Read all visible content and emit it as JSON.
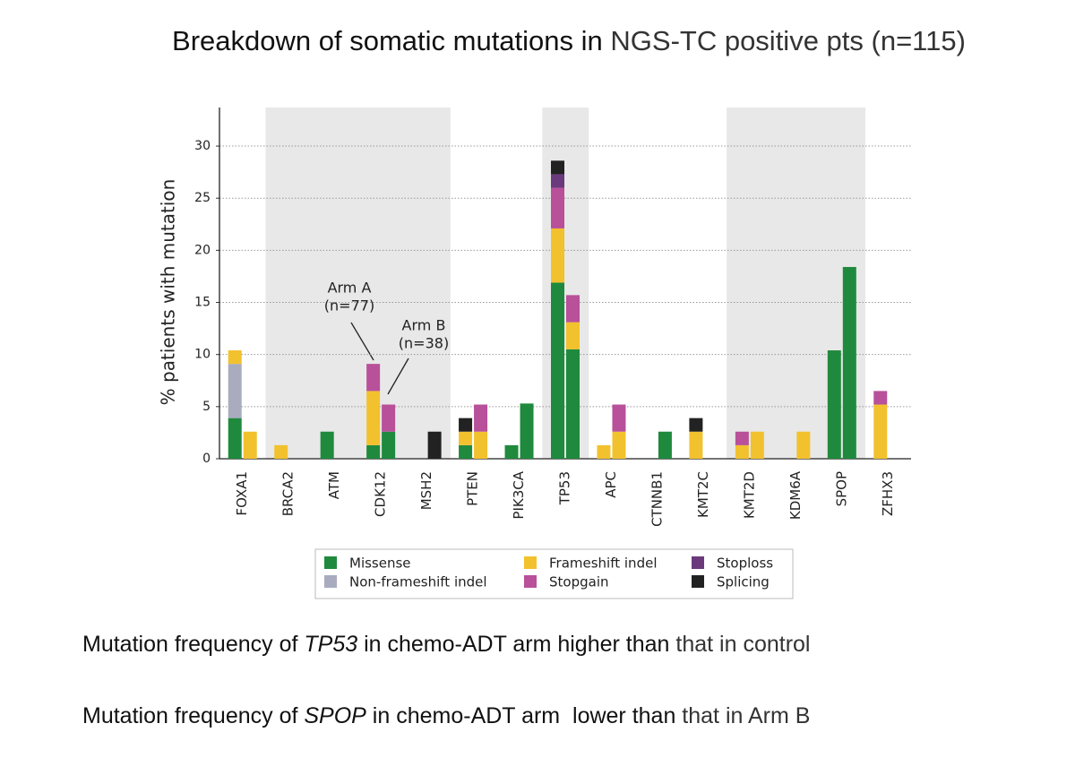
{
  "slide": {
    "title": [
      "Breakdown of somatic mutations in ",
      "NGS-TC positive pts (n=115)"
    ],
    "notes": [
      [
        "Mutation frequency of ",
        "TP53",
        " in chemo-ADT arm higher than",
        " that in control"
      ],
      [
        "Mutation frequency of ",
        "SPOP",
        " in chemo-ADT arm  lower than",
        " that in Arm B"
      ]
    ]
  },
  "chart_data": {
    "type": "grouped-stacked-bar",
    "ylabel": "% patients with mutation",
    "categories": [
      "FOXA1",
      "BRCA2",
      "ATM",
      "CDK12",
      "MSH2",
      "PTEN",
      "PIK3CA",
      "TP53",
      "APC",
      "CTNNB1",
      "KMT2C",
      "KMT2D",
      "KDM6A",
      "SPOP",
      "ZFHX3"
    ],
    "shaded_categories": [
      1,
      2,
      3,
      4,
      7,
      11,
      12,
      13
    ],
    "series": [
      {
        "name": "Missense",
        "color": "#1f8a3d",
        "values": [
          [
            3.9,
            0
          ],
          [
            0,
            0
          ],
          [
            2.6,
            0
          ],
          [
            1.3,
            2.6
          ],
          [
            0,
            0
          ],
          [
            1.3,
            0
          ],
          [
            1.3,
            5.3
          ],
          [
            16.9,
            10.5
          ],
          [
            0,
            0
          ],
          [
            0,
            2.6
          ],
          [
            0,
            0
          ],
          [
            0,
            0
          ],
          [
            0,
            0
          ],
          [
            10.4,
            18.4
          ],
          [
            0,
            0
          ]
        ]
      },
      {
        "name": "Non-frameshift indel",
        "color": "#a9abbf",
        "values": [
          [
            5.2,
            0
          ],
          [
            0,
            0
          ],
          [
            0,
            0
          ],
          [
            0,
            0
          ],
          [
            0,
            0
          ],
          [
            0,
            0
          ],
          [
            0,
            0
          ],
          [
            0,
            0
          ],
          [
            0,
            0
          ],
          [
            0,
            0
          ],
          [
            0,
            0
          ],
          [
            0,
            0
          ],
          [
            0,
            0
          ],
          [
            0,
            0
          ],
          [
            0,
            0
          ]
        ]
      },
      {
        "name": "Frameshift indel",
        "color": "#f2c12e",
        "values": [
          [
            1.3,
            2.6
          ],
          [
            1.3,
            0
          ],
          [
            0,
            0
          ],
          [
            5.2,
            0
          ],
          [
            0,
            0
          ],
          [
            1.3,
            2.6
          ],
          [
            0,
            0
          ],
          [
            5.2,
            2.6
          ],
          [
            1.3,
            2.6
          ],
          [
            0,
            0
          ],
          [
            2.6,
            0
          ],
          [
            1.3,
            2.6
          ],
          [
            0,
            2.6
          ],
          [
            0,
            0
          ],
          [
            5.2,
            0
          ]
        ]
      },
      {
        "name": "Stopgain",
        "color": "#b8509a",
        "values": [
          [
            0,
            0
          ],
          [
            0,
            0
          ],
          [
            0,
            0
          ],
          [
            2.6,
            2.6
          ],
          [
            0,
            0
          ],
          [
            0,
            2.6
          ],
          [
            0,
            0
          ],
          [
            3.9,
            2.6
          ],
          [
            0,
            2.6
          ],
          [
            0,
            0
          ],
          [
            0,
            0
          ],
          [
            1.3,
            0
          ],
          [
            0,
            0
          ],
          [
            0,
            0
          ],
          [
            1.3,
            0
          ]
        ]
      },
      {
        "name": "Stoploss",
        "color": "#6b3a7d",
        "values": [
          [
            0,
            0
          ],
          [
            0,
            0
          ],
          [
            0,
            0
          ],
          [
            0,
            0
          ],
          [
            0,
            0
          ],
          [
            0,
            0
          ],
          [
            0,
            0
          ],
          [
            1.3,
            0
          ],
          [
            0,
            0
          ],
          [
            0,
            0
          ],
          [
            0,
            0
          ],
          [
            0,
            0
          ],
          [
            0,
            0
          ],
          [
            0,
            0
          ],
          [
            0,
            0
          ]
        ]
      },
      {
        "name": "Splicing",
        "color": "#222222",
        "values": [
          [
            0,
            0
          ],
          [
            0,
            0
          ],
          [
            0,
            0
          ],
          [
            0,
            0
          ],
          [
            0,
            2.6
          ],
          [
            1.3,
            0
          ],
          [
            0,
            0
          ],
          [
            1.3,
            0
          ],
          [
            0,
            0
          ],
          [
            0,
            0
          ],
          [
            1.3,
            0
          ],
          [
            0,
            0
          ],
          [
            0,
            0
          ],
          [
            0,
            0
          ],
          [
            0,
            0
          ]
        ]
      }
    ],
    "annotations": [
      "Arm A",
      "(n=77)",
      "Arm B",
      "(n=38)"
    ],
    "ylim": [
      0,
      33.7
    ],
    "yticks": [
      0,
      5,
      10,
      15,
      20,
      25,
      30
    ],
    "grid": true
  }
}
